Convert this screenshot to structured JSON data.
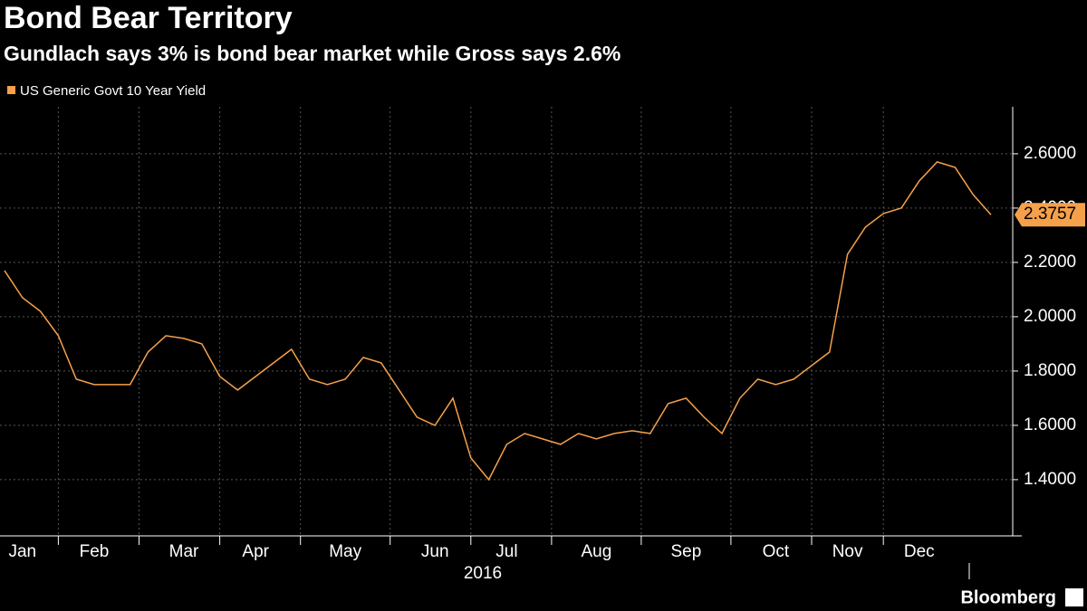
{
  "chart_data": {
    "type": "line",
    "title": "Bond Bear Territory",
    "subtitle": "Gundlach says 3% is bond bear market while Gross says 2.6%",
    "x_label": "2016",
    "source": "Bloomberg",
    "categories": [
      null,
      "Jan",
      null,
      null,
      null,
      "Feb",
      null,
      null,
      null,
      null,
      "Mar",
      null,
      null,
      null,
      "Apr",
      null,
      null,
      null,
      null,
      "May",
      null,
      null,
      null,
      null,
      "Jun",
      null,
      null,
      null,
      "Jul",
      null,
      null,
      null,
      null,
      "Aug",
      null,
      null,
      null,
      null,
      "Sep",
      null,
      null,
      null,
      null,
      "Oct",
      null,
      null,
      null,
      "Nov",
      null,
      null,
      null,
      "Dec",
      null,
      null,
      null,
      null
    ],
    "series": [
      {
        "name": "US Generic Govt 10 Year Yield",
        "color": "#f5a04a",
        "values": [
          2.17,
          2.07,
          2.02,
          1.93,
          1.77,
          1.75,
          1.75,
          1.75,
          1.87,
          1.93,
          1.92,
          1.9,
          1.78,
          1.73,
          1.78,
          1.83,
          1.88,
          1.77,
          1.75,
          1.77,
          1.85,
          1.83,
          1.73,
          1.63,
          1.6,
          1.7,
          1.48,
          1.4,
          1.53,
          1.57,
          1.55,
          1.53,
          1.57,
          1.55,
          1.57,
          1.58,
          1.57,
          1.68,
          1.7,
          1.63,
          1.57,
          1.7,
          1.77,
          1.75,
          1.77,
          1.82,
          1.87,
          2.23,
          2.33,
          2.38,
          2.4,
          2.5,
          2.57,
          2.55,
          2.45,
          2.3757
        ]
      }
    ],
    "ylim": [
      1.193,
      2.773
    ],
    "yticks": [
      {
        "value": 1.4,
        "label": "1.4000"
      },
      {
        "value": 1.6,
        "label": "1.6000"
      },
      {
        "value": 1.8,
        "label": "1.8000"
      },
      {
        "value": 2.0,
        "label": "2.0000"
      },
      {
        "value": 2.2,
        "label": "2.2000"
      },
      {
        "value": 2.4,
        "label": "2.4000"
      },
      {
        "value": 2.6,
        "label": "2.6000"
      }
    ],
    "grid": true
  }
}
